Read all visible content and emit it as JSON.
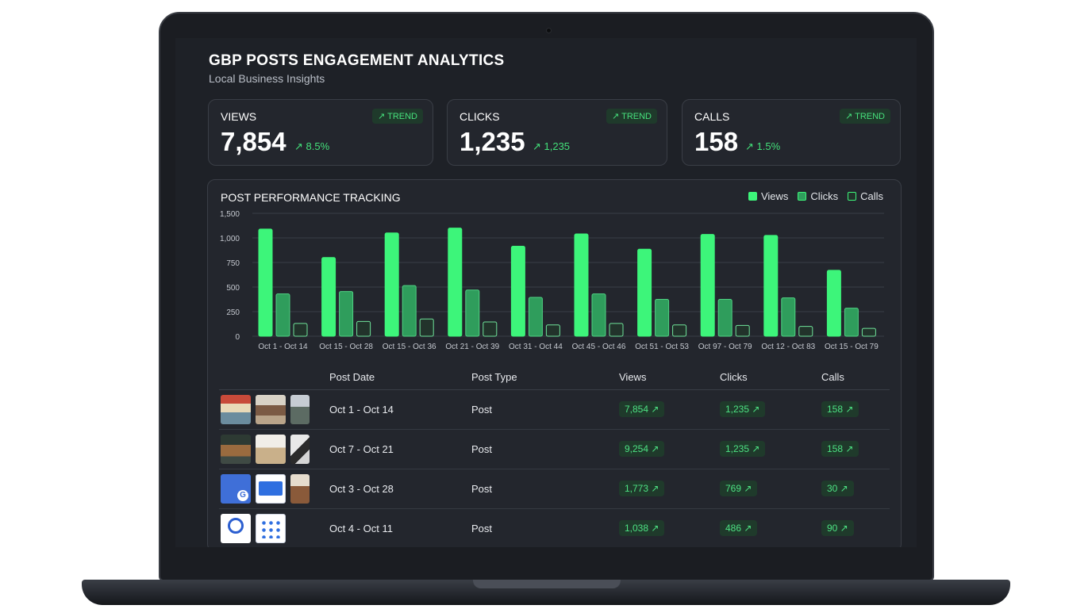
{
  "dashboard": {
    "title": "GBP POSTS ENGAGEMENT ANALYTICS",
    "subtitle": "Local Business Insights"
  },
  "cards": [
    {
      "label": "VIEWS",
      "value": "7,854",
      "delta": "↗ 8.5%",
      "trend": "↗ TREND"
    },
    {
      "label": "CLICKS",
      "value": "1,235",
      "delta": "↗ 1,235",
      "trend": "↗ TREND"
    },
    {
      "label": "CALLS",
      "value": "158",
      "delta": "↗ 1.5%",
      "trend": "↗ TREND"
    }
  ],
  "chart_panel": {
    "title": "POST PERFORMANCE TRACKING",
    "legend": [
      "Views",
      "Clicks",
      "Calls"
    ]
  },
  "colors": {
    "views": "#3df57a",
    "clicks": "#2f9d5c",
    "calls": "#22332b",
    "accent": "#43e07a"
  },
  "chart_data": {
    "type": "bar",
    "categories": [
      "Oct 1 - Oct 14",
      "Oct 15 - Oct 28",
      "Oct 15 - Oct 36",
      "Oct 21 - Oct 39",
      "Oct 31 - Oct 44",
      "Oct 45 - Oct 46",
      "Oct 51 - Oct 53",
      "Oct 97 - Oct 79",
      "Oct 12 - Oct 83",
      "Oct 15 - Oct 79"
    ],
    "series": [
      {
        "name": "Views",
        "values": [
          1090,
          800,
          1050,
          1100,
          915,
          1040,
          885,
          1035,
          1025,
          670
        ]
      },
      {
        "name": "Clicks",
        "values": [
          430,
          455,
          515,
          470,
          395,
          430,
          375,
          375,
          390,
          285
        ]
      },
      {
        "name": "Calls",
        "values": [
          130,
          150,
          175,
          145,
          115,
          130,
          115,
          110,
          100,
          80
        ]
      }
    ],
    "yticks": [
      "0",
      "250",
      "500",
      "750",
      "1,000",
      "1,500"
    ],
    "ylim": [
      0,
      1250
    ],
    "grid": true,
    "legend_position": "top-right"
  },
  "table": {
    "headers": [
      "Post Date",
      "Post Type",
      "Views",
      "Clicks",
      "Calls"
    ],
    "rows": [
      {
        "date": "Oct 1 - Oct 14",
        "type": "Post",
        "views": "7,854 ↗",
        "clicks": "1,235 ↗",
        "calls": "158 ↗"
      },
      {
        "date": "Oct 7 - Oct 21",
        "type": "Post",
        "views": "9,254 ↗",
        "clicks": "1,235 ↗",
        "calls": "158 ↗"
      },
      {
        "date": "Oct 3 - Oct 28",
        "type": "Post",
        "views": "1,773 ↗",
        "clicks": "769 ↗",
        "calls": "30 ↗"
      },
      {
        "date": "Oct 4 - Oct 11",
        "type": "Post",
        "views": "1,038 ↗",
        "clicks": "486 ↗",
        "calls": "90 ↗"
      }
    ]
  }
}
